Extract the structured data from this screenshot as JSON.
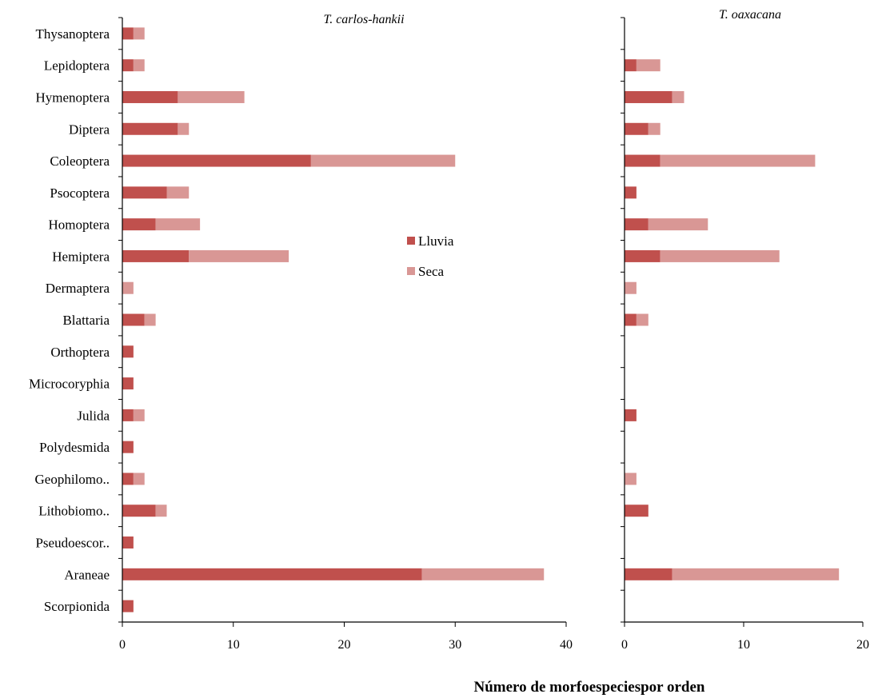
{
  "chart_data": [
    {
      "type": "bar",
      "orientation": "horizontal",
      "stacked": true,
      "title": "T. carlos-hankii",
      "categories": [
        "Thysanoptera",
        "Lepidoptera",
        "Hymenoptera",
        "Diptera",
        "Coleoptera",
        "Psocoptera",
        "Homoptera",
        "Hemiptera",
        "Dermaptera",
        "Blattaria",
        "Orthoptera",
        "Microcoryphia",
        "Julida",
        "Polydesmida",
        "Geophilomo..",
        "Lithobiomo..",
        "Pseudoescor..",
        "Araneae",
        "Scorpionida"
      ],
      "series": [
        {
          "name": "Lluvia",
          "color": "#c0504d",
          "values": [
            1,
            1,
            5,
            5,
            17,
            4,
            3,
            6,
            0,
            2,
            1,
            1,
            1,
            1,
            1,
            3,
            1,
            27,
            1
          ]
        },
        {
          "name": "Seca",
          "color": "#d99795",
          "values": [
            1,
            1,
            6,
            1,
            13,
            2,
            4,
            9,
            1,
            1,
            0,
            0,
            1,
            0,
            1,
            1,
            0,
            11,
            0
          ]
        }
      ],
      "xlim": [
        0,
        40
      ],
      "xticks": [
        0,
        10,
        20,
        30,
        40
      ]
    },
    {
      "type": "bar",
      "orientation": "horizontal",
      "stacked": true,
      "title": "T. oaxacana",
      "categories": [
        "Thysanoptera",
        "Lepidoptera",
        "Hymenoptera",
        "Diptera",
        "Coleoptera",
        "Psocoptera",
        "Homoptera",
        "Hemiptera",
        "Dermaptera",
        "Blattaria",
        "Orthoptera",
        "Microcoryphia",
        "Julida",
        "Polydesmida",
        "Geophilomo..",
        "Lithobiomo..",
        "Pseudoescor..",
        "Araneae",
        "Scorpionida"
      ],
      "series": [
        {
          "name": "Lluvia",
          "color": "#c0504d",
          "values": [
            0,
            1,
            4,
            2,
            3,
            1,
            2,
            3,
            0,
            1,
            0,
            0,
            1,
            0,
            0,
            2,
            0,
            4,
            0
          ]
        },
        {
          "name": "Seca",
          "color": "#d99795",
          "values": [
            0,
            2,
            1,
            1,
            13,
            0,
            5,
            10,
            1,
            1,
            0,
            0,
            0,
            0,
            1,
            0,
            0,
            14,
            0
          ]
        }
      ],
      "xlim": [
        0,
        20
      ],
      "xticks": [
        0,
        10,
        20
      ]
    }
  ],
  "legend": {
    "items": [
      {
        "label": "Lluvia",
        "color": "#c0504d"
      },
      {
        "label": "Seca",
        "color": "#d99795"
      }
    ]
  },
  "xaxis_title": "Número de morfoespeciespor orden"
}
